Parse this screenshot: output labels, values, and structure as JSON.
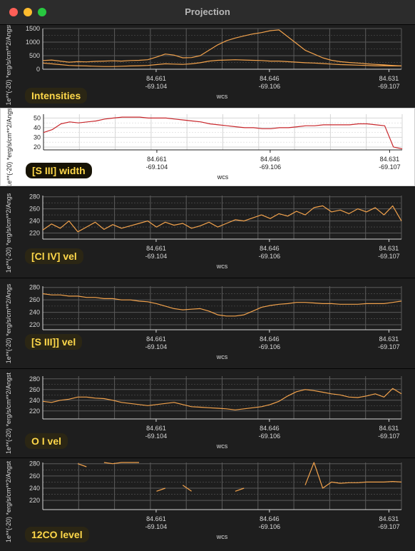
{
  "window": {
    "title": "Projection",
    "colors": {
      "close": "#ff5f57",
      "minimize": "#febc2e",
      "maximize": "#28c840"
    }
  },
  "plots": [
    {
      "label": "Intensities",
      "theme": "dark",
      "ylabel": "1e**(-20) *erg/s/cm**2/Angst",
      "xlabel": "wcs",
      "yticks": [
        "1500",
        "1000",
        "500",
        "0"
      ],
      "xticks": [
        {
          "ra": "84.661",
          "dec": "-69.104"
        },
        {
          "ra": "84.646",
          "dec": "-69.106"
        },
        {
          "ra": "84.631",
          "dec": "-69.107"
        }
      ],
      "chart_data": {
        "type": "line",
        "ylim": [
          0,
          1500
        ],
        "yticks": [
          0,
          500,
          1000,
          1500
        ],
        "series": [
          {
            "values": [
              320,
              340,
              300,
              260,
              280,
              270,
              290,
              300,
              310,
              300,
              320,
              330,
              350,
              450,
              560,
              520,
              420,
              430,
              500,
              700,
              900,
              1050,
              1150,
              1230,
              1300,
              1350,
              1420,
              1450,
              1200,
              950,
              700,
              560,
              420,
              330,
              280,
              250,
              230,
              200,
              180,
              160,
              140,
              120
            ]
          },
          {
            "values": [
              230,
              200,
              170,
              140,
              130,
              120,
              110,
              100,
              100,
              110,
              120,
              130,
              140,
              170,
              200,
              190,
              180,
              200,
              240,
              300,
              330,
              340,
              350,
              340,
              330,
              320,
              300,
              300,
              280,
              260,
              240,
              230,
              210,
              190,
              170,
              160,
              150,
              140,
              130,
              130,
              120,
              120
            ]
          }
        ]
      }
    },
    {
      "label": "[S III] width",
      "theme": "light",
      "ylabel": "1e**(-20) *erg/s/cm**2/Angs",
      "xlabel": "wcs",
      "yticks": [
        "50",
        "40",
        "30",
        "20"
      ],
      "xticks": [
        {
          "ra": "84.661",
          "dec": "-69.104"
        },
        {
          "ra": "84.646",
          "dec": "-69.106"
        },
        {
          "ra": "84.631",
          "dec": "-69.107"
        }
      ],
      "chart_data": {
        "type": "line",
        "ylim": [
          17,
          54
        ],
        "yticks": [
          20,
          30,
          40,
          50
        ],
        "series": [
          {
            "values": [
              35,
              38,
              44,
              46,
              45,
              46,
              47,
              49,
              50,
              51,
              51,
              51,
              50,
              50,
              50,
              49,
              48,
              47,
              46,
              44,
              43,
              42,
              41,
              40,
              40,
              39,
              39,
              40,
              40,
              41,
              42,
              42,
              43,
              43,
              43,
              43,
              44,
              44,
              43,
              42,
              20,
              18
            ]
          }
        ]
      }
    },
    {
      "label": "[Cl IV] vel",
      "theme": "dark",
      "ylabel": "1e**(-20) *erg/s/cm**2/Angs",
      "xlabel": "wcs",
      "yticks": [
        "280",
        "260",
        "240",
        "220"
      ],
      "xticks": [
        {
          "ra": "84.661",
          "dec": "-69.104"
        },
        {
          "ra": "84.646",
          "dec": "-69.106"
        },
        {
          "ra": "84.631",
          "dec": "-69.107"
        }
      ],
      "chart_data": {
        "type": "line",
        "ylim": [
          210,
          282
        ],
        "yticks": [
          220,
          240,
          260,
          280
        ],
        "series": [
          {
            "values": [
              225,
              235,
              228,
              240,
              222,
              230,
              238,
              226,
              234,
              228,
              232,
              236,
              240,
              230,
              238,
              233,
              236,
              228,
              232,
              238,
              230,
              236,
              242,
              240,
              245,
              250,
              244,
              252,
              248,
              256,
              250,
              262,
              265,
              255,
              258,
              252,
              260,
              255,
              262,
              250,
              265,
              240
            ]
          }
        ]
      }
    },
    {
      "label": "[S III]] vel",
      "theme": "dark",
      "ylabel": "1e**(-20) *erg/s/cm**2/Angs",
      "xlabel": "wcs",
      "yticks": [
        "280",
        "260",
        "240",
        "220"
      ],
      "xticks": [
        {
          "ra": "84.661",
          "dec": "-69.104"
        },
        {
          "ra": "84.646",
          "dec": "-69.106"
        },
        {
          "ra": "84.631",
          "dec": "-69.107"
        }
      ],
      "chart_data": {
        "type": "line",
        "ylim": [
          212,
          282
        ],
        "yticks": [
          220,
          240,
          260,
          280
        ],
        "series": [
          {
            "values": [
              270,
              268,
              268,
              266,
              266,
              264,
              264,
              262,
              262,
              260,
              260,
              258,
              257,
              254,
              250,
              246,
              244,
              245,
              246,
              242,
              236,
              234,
              234,
              236,
              242,
              248,
              251,
              253,
              254,
              256,
              256,
              255,
              254,
              254,
              253,
              253,
              253,
              254,
              254,
              254,
              256,
              258
            ]
          }
        ]
      }
    },
    {
      "label": "O I vel",
      "theme": "dark",
      "ylabel": "1e**(-20) *erg/s/cm**2/Angst",
      "xlabel": "wcs",
      "yticks": [
        "280",
        "260",
        "240",
        "220"
      ],
      "xticks": [
        {
          "ra": "84.661",
          "dec": "-69.104"
        },
        {
          "ra": "84.646",
          "dec": "-69.106"
        },
        {
          "ra": "84.631",
          "dec": "-69.107"
        }
      ],
      "chart_data": {
        "type": "line",
        "ylim": [
          205,
          285
        ],
        "yticks": [
          220,
          240,
          260,
          280
        ],
        "series": [
          {
            "values": [
              238,
              236,
              240,
              242,
              246,
              246,
              244,
              243,
              240,
              236,
              234,
              232,
              230,
              232,
              234,
              236,
              232,
              228,
              227,
              226,
              225,
              224,
              222,
              224,
              226,
              228,
              232,
              238,
              248,
              256,
              260,
              258,
              255,
              252,
              250,
              246,
              245,
              248,
              252,
              246,
              262,
              252
            ]
          }
        ]
      }
    },
    {
      "label": "12CO level",
      "theme": "dark",
      "ylabel": "1e**(-20) *erg/s/cm**2/Angst",
      "xlabel": "wcs",
      "yticks": [
        "280",
        "260",
        "240",
        "220"
      ],
      "xticks": [
        {
          "ra": "84.661",
          "dec": "-69.104"
        },
        {
          "ra": "84.646",
          "dec": "-69.106"
        },
        {
          "ra": "84.631",
          "dec": "-69.107"
        }
      ],
      "chart_data": {
        "type": "line",
        "ylim": [
          205,
          282
        ],
        "yticks": [
          220,
          240,
          260,
          280
        ],
        "series": [
          {
            "values": [
              null,
              null,
              null,
              null,
              280,
              275,
              null,
              282,
              280,
              282,
              282,
              282,
              null,
              235,
              240,
              null,
              245,
              235,
              null,
              null,
              225,
              null,
              235,
              240,
              null,
              null,
              null,
              230,
              null,
              null,
              245,
              282,
              240,
              250,
              248,
              249,
              249,
              250,
              250,
              250,
              251,
              250
            ]
          }
        ]
      }
    }
  ]
}
